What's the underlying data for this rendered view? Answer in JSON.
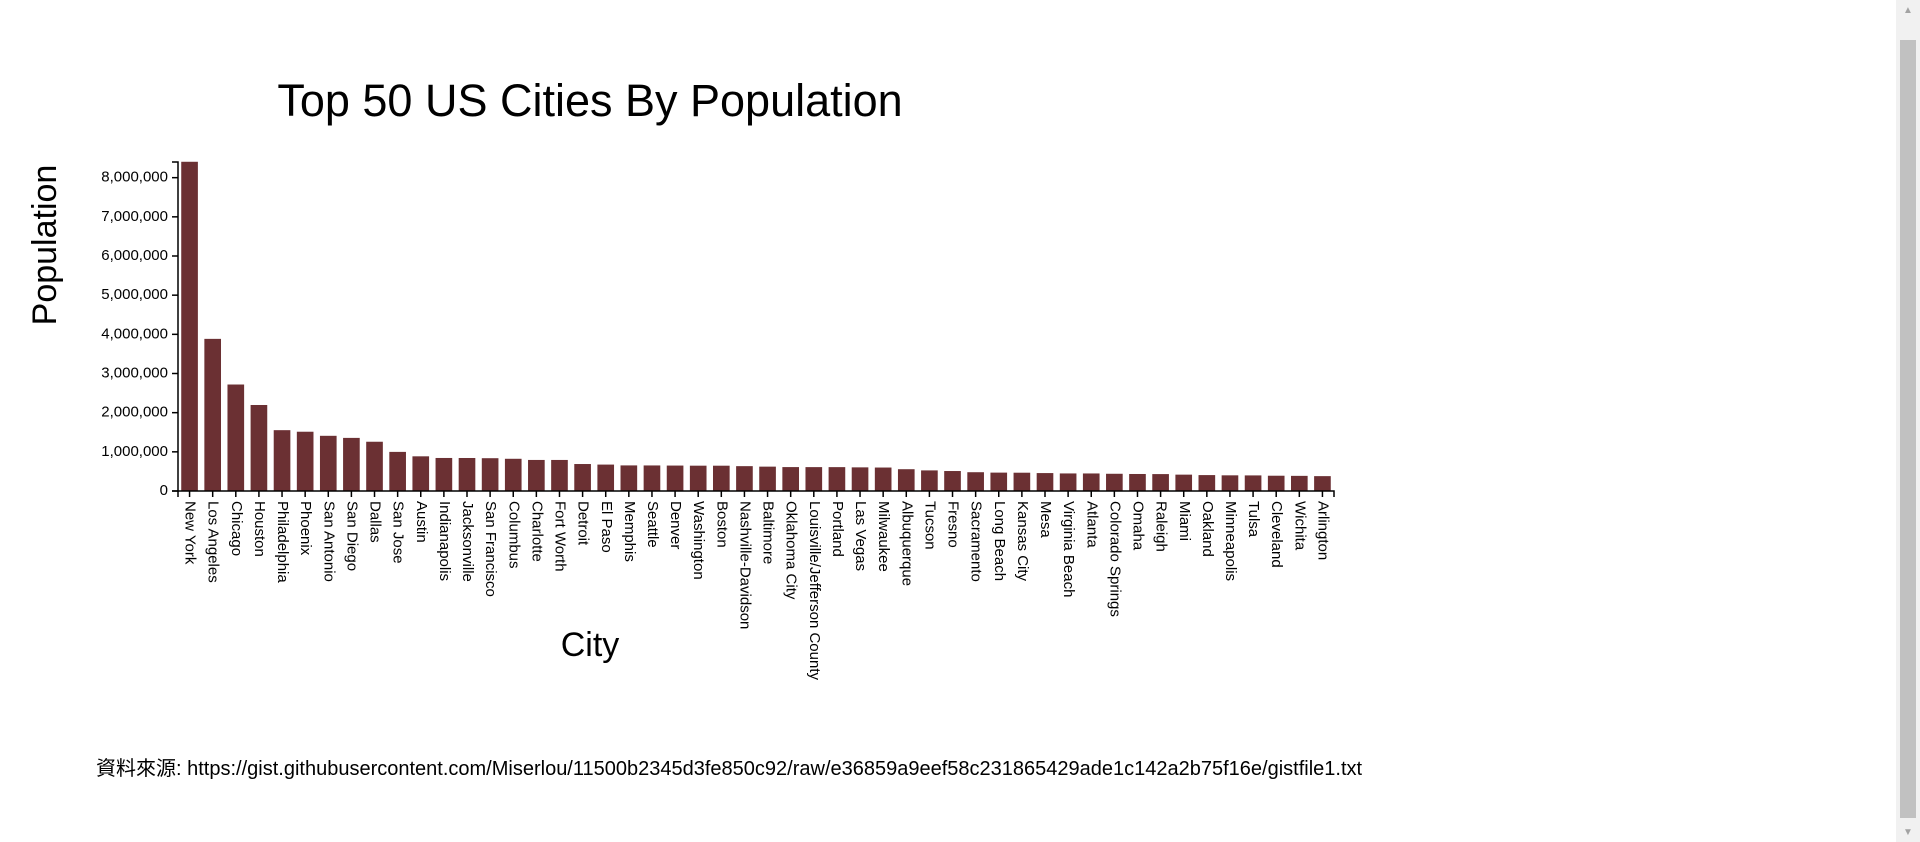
{
  "source": {
    "label": "資料來源:",
    "url": "https://gist.githubusercontent.com/Miserlou/11500b2345d3fe850c92/raw/e36859a9eef58c231865429ade1c142a2b75f16e/gistfile1.txt"
  },
  "chart_data": {
    "type": "bar",
    "title": "Top 50 US Cities By Population",
    "xlabel": "City",
    "ylabel": "Population",
    "ylim": [
      0,
      8400000
    ],
    "yticks": [
      0,
      1000000,
      2000000,
      3000000,
      4000000,
      5000000,
      6000000,
      7000000,
      8000000
    ],
    "ytick_labels": [
      "0",
      "1,000,000",
      "2,000,000",
      "3,000,000",
      "4,000,000",
      "5,000,000",
      "6,000,000",
      "7,000,000",
      "8,000,000"
    ],
    "bar_color": "#6b3033",
    "categories": [
      "New York",
      "Los Angeles",
      "Chicago",
      "Houston",
      "Philadelphia",
      "Phoenix",
      "San Antonio",
      "San Diego",
      "Dallas",
      "San Jose",
      "Austin",
      "Indianapolis",
      "Jacksonville",
      "San Francisco",
      "Columbus",
      "Charlotte",
      "Fort Worth",
      "Detroit",
      "El Paso",
      "Memphis",
      "Seattle",
      "Denver",
      "Washington",
      "Boston",
      "Nashville-Davidson",
      "Baltimore",
      "Oklahoma City",
      "Louisville/Jefferson County",
      "Portland",
      "Las Vegas",
      "Milwaukee",
      "Albuquerque",
      "Tucson",
      "Fresno",
      "Sacramento",
      "Long Beach",
      "Kansas City",
      "Mesa",
      "Virginia Beach",
      "Atlanta",
      "Colorado Springs",
      "Omaha",
      "Raleigh",
      "Miami",
      "Oakland",
      "Minneapolis",
      "Tulsa",
      "Cleveland",
      "Wichita",
      "Arlington"
    ],
    "values": [
      8405837,
      3884307,
      2718782,
      2195914,
      1553165,
      1513367,
      1409019,
      1355896,
      1257676,
      998537,
      885400,
      843393,
      842583,
      837442,
      822553,
      792862,
      792727,
      688701,
      674433,
      653450,
      652405,
      649495,
      646449,
      645966,
      634464,
      622104,
      610613,
      609893,
      609456,
      603488,
      599164,
      556495,
      526116,
      509924,
      479686,
      469428,
      467007,
      457587,
      448479,
      447841,
      439886,
      434353,
      431746,
      417650,
      406253,
      400070,
      398121,
      390113,
      386552,
      379577
    ]
  }
}
